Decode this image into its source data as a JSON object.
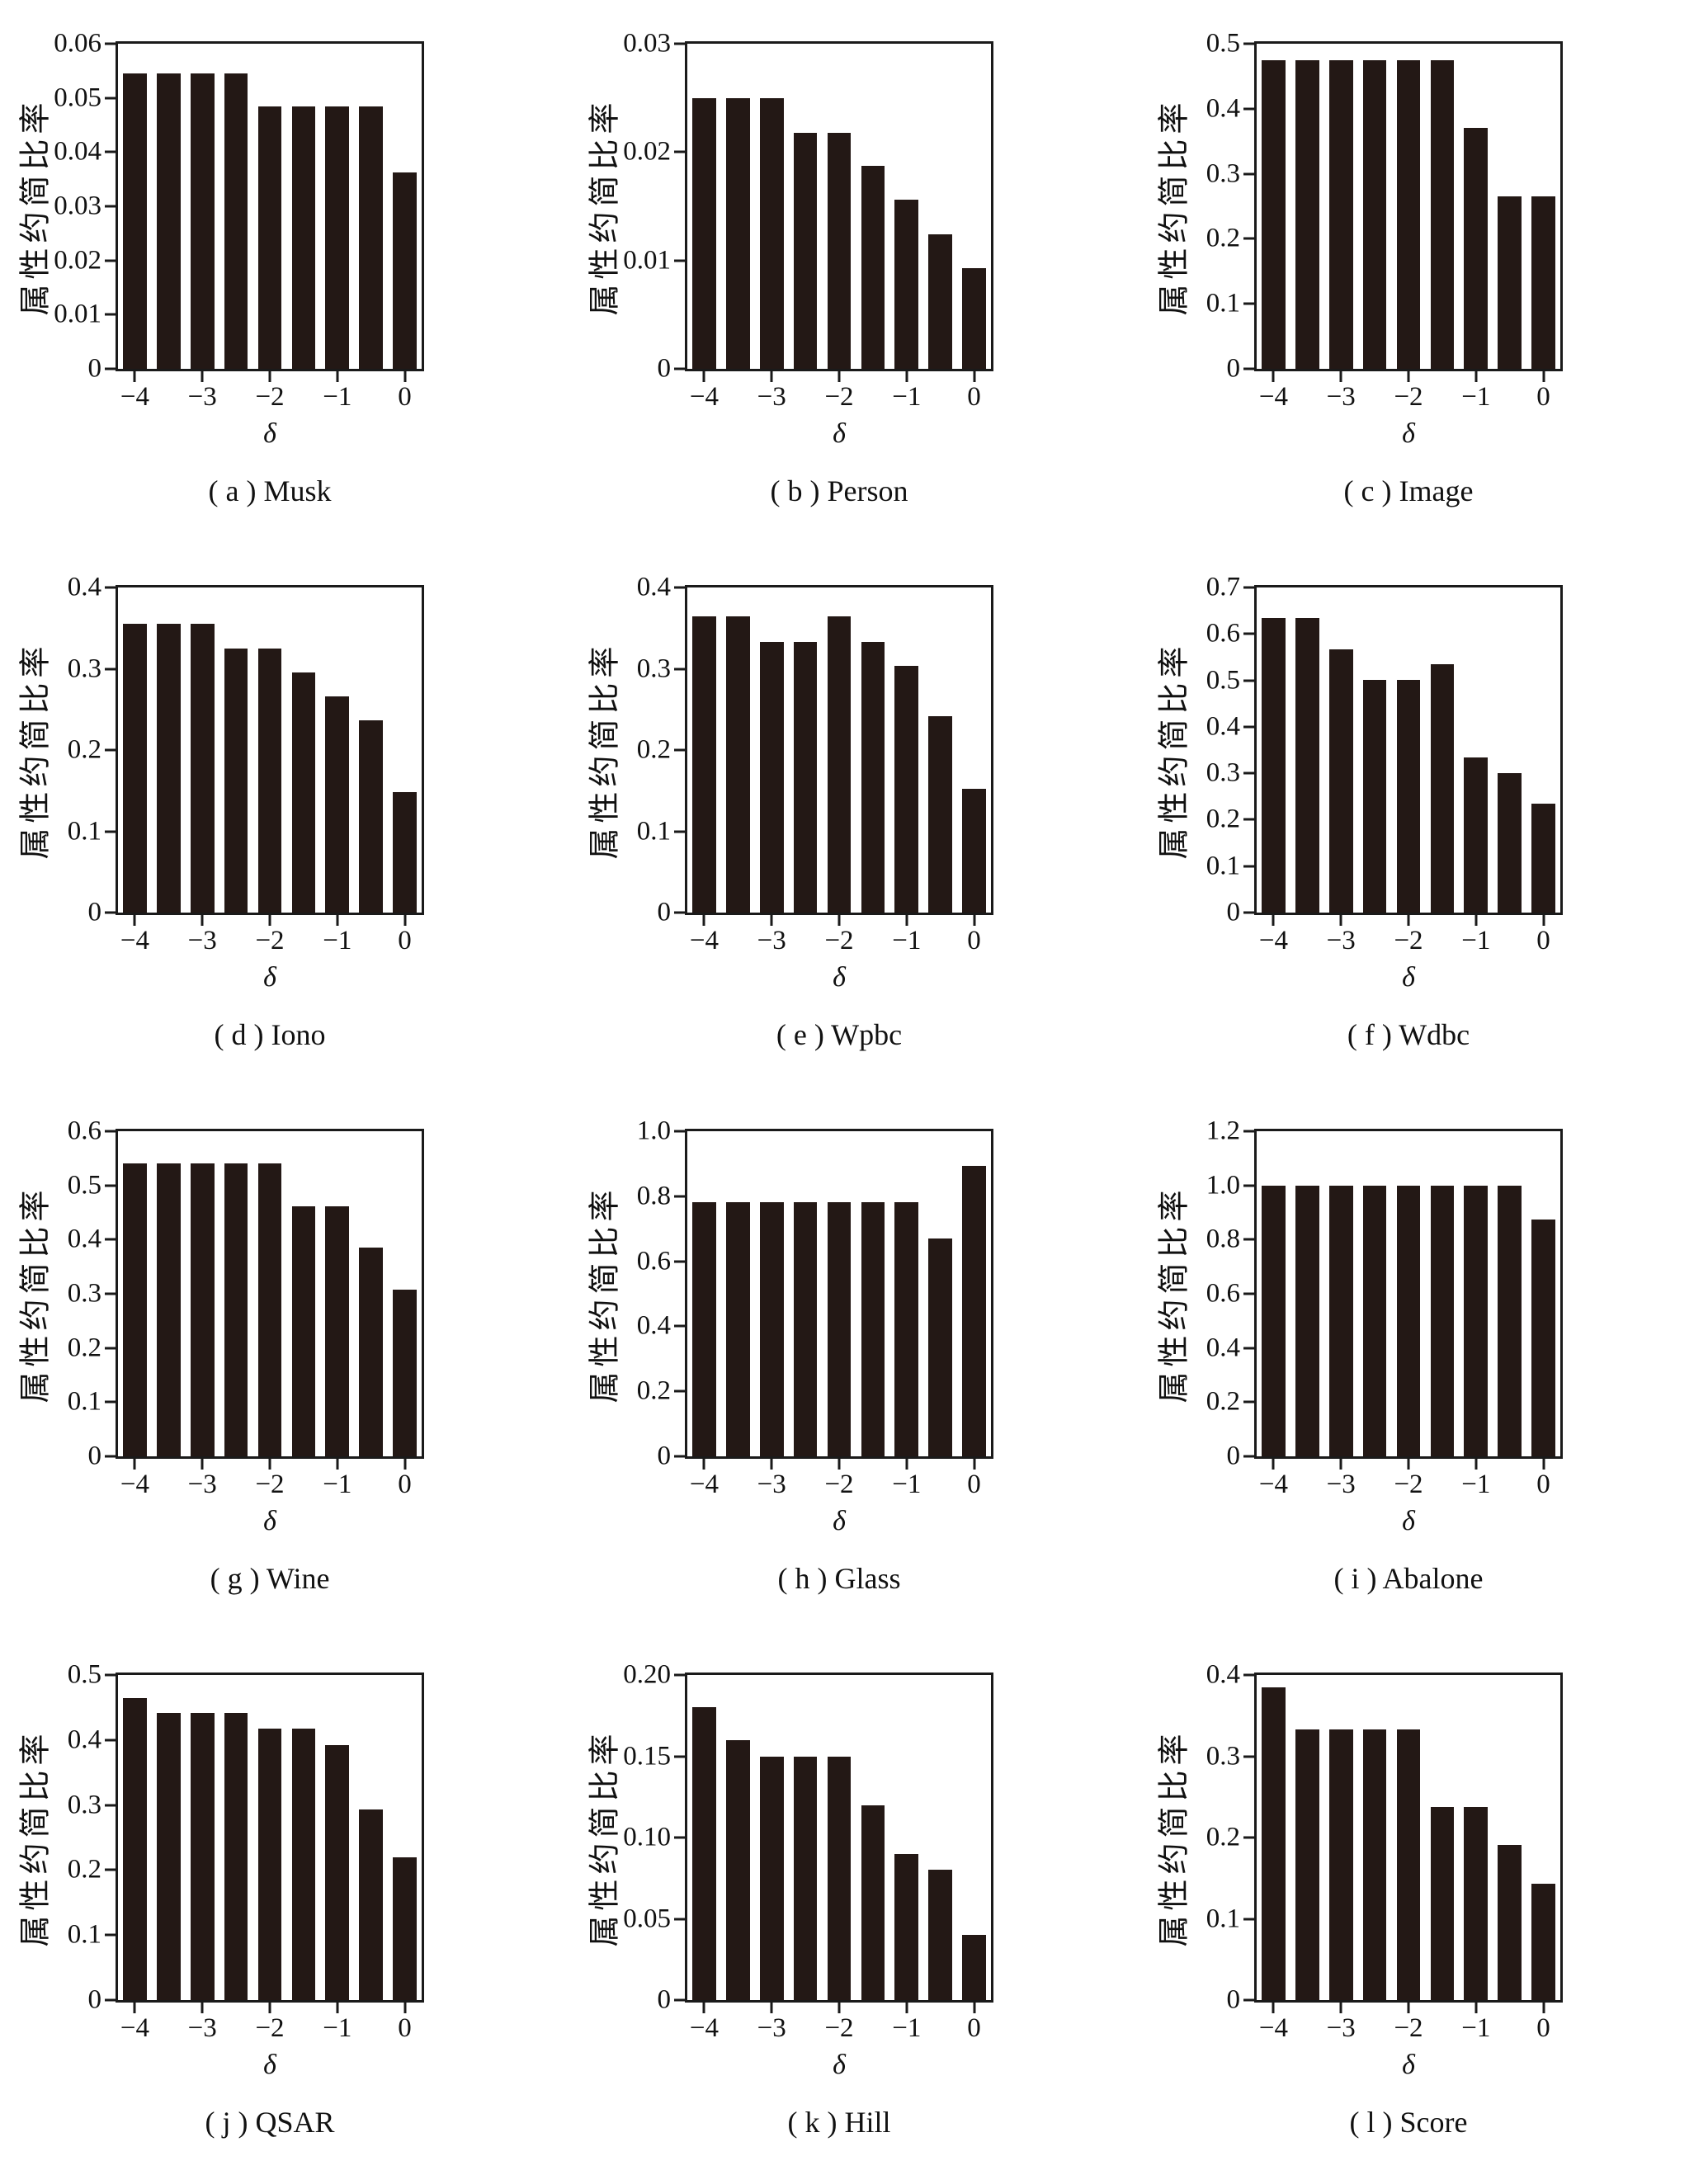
{
  "axes": {
    "y_title": "属性约简比率",
    "x_title": "δ",
    "xtick_labels": [
      "−4",
      "−3",
      "−2",
      "−1",
      "0"
    ],
    "xtick_positions": [
      0,
      2,
      4,
      6,
      8
    ]
  },
  "colors": {
    "bar": "#231815",
    "axis": "#1a1a1a",
    "background": "#ffffff"
  },
  "chart_data": [
    {
      "type": "bar",
      "panel": "a",
      "dataset": "Musk",
      "caption": "( a ) Musk",
      "title": "( a ) Musk",
      "xlabel": "δ",
      "ylabel": "属性约简比率",
      "categories": [
        -4,
        -3.5,
        -3,
        -2.5,
        -2,
        -1.5,
        -1,
        -0.5,
        0
      ],
      "values": [
        0.0545,
        0.0545,
        0.0545,
        0.0545,
        0.0485,
        0.0485,
        0.0485,
        0.0485,
        0.0362
      ],
      "ylim": [
        0,
        0.06
      ],
      "ytick_values": [
        0.06,
        0.05,
        0.04,
        0.03,
        0.02,
        0.01,
        0
      ],
      "ytick_labels": [
        "0.06",
        "0.05",
        "0.04",
        "0.03",
        "0.02",
        "0.01",
        "0"
      ],
      "grid": false,
      "legend": false
    },
    {
      "type": "bar",
      "panel": "b",
      "dataset": "Person",
      "caption": "( b ) Person",
      "title": "( b ) Person",
      "xlabel": "δ",
      "ylabel": "属性约简比率",
      "categories": [
        -4,
        -3.5,
        -3,
        -2.5,
        -2,
        -1.5,
        -1,
        -0.5,
        0
      ],
      "values": [
        0.025,
        0.025,
        0.025,
        0.0218,
        0.0218,
        0.0187,
        0.0156,
        0.0124,
        0.0093
      ],
      "ylim": [
        0,
        0.03
      ],
      "ytick_values": [
        0.03,
        0.02,
        0.01,
        0
      ],
      "ytick_labels": [
        "0.03",
        "0.02",
        "0.01",
        "0"
      ],
      "grid": false,
      "legend": false
    },
    {
      "type": "bar",
      "panel": "c",
      "dataset": "Image",
      "caption": "( c ) Image",
      "title": "( c ) Image",
      "xlabel": "δ",
      "ylabel": "属性约简比率",
      "categories": [
        -4,
        -3.5,
        -3,
        -2.5,
        -2,
        -1.5,
        -1,
        -0.5,
        0
      ],
      "values": [
        0.475,
        0.475,
        0.475,
        0.475,
        0.475,
        0.475,
        0.37,
        0.265,
        0.265
      ],
      "ylim": [
        0,
        0.5
      ],
      "ytick_values": [
        0.5,
        0.4,
        0.3,
        0.2,
        0.1,
        0
      ],
      "ytick_labels": [
        "0.5",
        "0.4",
        "0.3",
        "0.2",
        "0.1",
        "0"
      ],
      "grid": false,
      "legend": false
    },
    {
      "type": "bar",
      "panel": "d",
      "dataset": "Iono",
      "caption": "( d ) Iono",
      "title": "( d ) Iono",
      "xlabel": "δ",
      "ylabel": "属性约简比率",
      "categories": [
        -4,
        -3.5,
        -3,
        -2.5,
        -2,
        -1.5,
        -1,
        -0.5,
        0
      ],
      "values": [
        0.355,
        0.355,
        0.355,
        0.325,
        0.325,
        0.295,
        0.266,
        0.237,
        0.148
      ],
      "ylim": [
        0,
        0.4
      ],
      "ytick_values": [
        0.4,
        0.3,
        0.2,
        0.1,
        0
      ],
      "ytick_labels": [
        "0.4",
        "0.3",
        "0.2",
        "0.1",
        "0"
      ],
      "grid": false,
      "legend": false
    },
    {
      "type": "bar",
      "panel": "e",
      "dataset": "Wpbc",
      "caption": "( e ) Wpbc",
      "title": "( e ) Wpbc",
      "xlabel": "δ",
      "ylabel": "属性约简比率",
      "categories": [
        -4,
        -3.5,
        -3,
        -2.5,
        -2,
        -1.5,
        -1,
        -0.5,
        0
      ],
      "values": [
        0.364,
        0.364,
        0.333,
        0.333,
        0.364,
        0.333,
        0.304,
        0.242,
        0.152
      ],
      "ylim": [
        0,
        0.4
      ],
      "ytick_values": [
        0.4,
        0.3,
        0.2,
        0.1,
        0
      ],
      "ytick_labels": [
        "0.4",
        "0.3",
        "0.2",
        "0.1",
        "0"
      ],
      "grid": false,
      "legend": false
    },
    {
      "type": "bar",
      "panel": "f",
      "dataset": "Wdbc",
      "caption": "( f ) Wdbc",
      "title": "( f ) Wdbc",
      "xlabel": "δ",
      "ylabel": "属性约简比率",
      "categories": [
        -4,
        -3.5,
        -3,
        -2.5,
        -2,
        -1.5,
        -1,
        -0.5,
        0
      ],
      "values": [
        0.635,
        0.635,
        0.567,
        0.501,
        0.501,
        0.535,
        0.334,
        0.301,
        0.234
      ],
      "ylim": [
        0,
        0.7
      ],
      "ytick_values": [
        0.7,
        0.6,
        0.5,
        0.4,
        0.3,
        0.2,
        0.1,
        0
      ],
      "ytick_labels": [
        "0.7",
        "0.6",
        "0.5",
        "0.4",
        "0.3",
        "0.2",
        "0.1",
        "0"
      ],
      "grid": false,
      "legend": false
    },
    {
      "type": "bar",
      "panel": "g",
      "dataset": "Wine",
      "caption": "( g ) Wine",
      "title": "( g ) Wine",
      "xlabel": "δ",
      "ylabel": "属性约简比率",
      "categories": [
        -4,
        -3.5,
        -3,
        -2.5,
        -2,
        -1.5,
        -1,
        -0.5,
        0
      ],
      "values": [
        0.54,
        0.54,
        0.54,
        0.54,
        0.54,
        0.462,
        0.462,
        0.385,
        0.308
      ],
      "ylim": [
        0,
        0.6
      ],
      "ytick_values": [
        0.6,
        0.5,
        0.4,
        0.3,
        0.2,
        0.1,
        0
      ],
      "ytick_labels": [
        "0.6",
        "0.5",
        "0.4",
        "0.3",
        "0.2",
        "0.1",
        "0"
      ],
      "grid": false,
      "legend": false
    },
    {
      "type": "bar",
      "panel": "h",
      "dataset": "Glass",
      "caption": "( h ) Glass",
      "title": "( h ) Glass",
      "xlabel": "δ",
      "ylabel": "属性约简比率",
      "categories": [
        -4,
        -3.5,
        -3,
        -2.5,
        -2,
        -1.5,
        -1,
        -0.5,
        0
      ],
      "values": [
        0.783,
        0.783,
        0.783,
        0.783,
        0.783,
        0.783,
        0.783,
        0.67,
        0.893
      ],
      "ylim": [
        0,
        1.0
      ],
      "ytick_values": [
        1.0,
        0.8,
        0.6,
        0.4,
        0.2,
        0
      ],
      "ytick_labels": [
        "1.0",
        "0.8",
        "0.6",
        "0.4",
        "0.2",
        "0"
      ],
      "grid": false,
      "legend": false
    },
    {
      "type": "bar",
      "panel": "i",
      "dataset": "Abalone",
      "caption": "( i ) Abalone",
      "title": "( i ) Abalone",
      "xlabel": "δ",
      "ylabel": "属性约简比率",
      "categories": [
        -4,
        -3.5,
        -3,
        -2.5,
        -2,
        -1.5,
        -1,
        -0.5,
        0
      ],
      "values": [
        1.0,
        1.0,
        1.0,
        1.0,
        1.0,
        1.0,
        1.0,
        1.0,
        0.875
      ],
      "ylim": [
        0,
        1.2
      ],
      "ytick_values": [
        1.2,
        1.0,
        0.8,
        0.6,
        0.4,
        0.2,
        0
      ],
      "ytick_labels": [
        "1.2",
        "1.0",
        "0.8",
        "0.6",
        "0.4",
        "0.2",
        "0"
      ],
      "grid": false,
      "legend": false
    },
    {
      "type": "bar",
      "panel": "j",
      "dataset": "QSAR",
      "caption": "( j ) QSAR",
      "title": "( j ) QSAR",
      "xlabel": "δ",
      "ylabel": "属性约简比率",
      "categories": [
        -4,
        -3.5,
        -3,
        -2.5,
        -2,
        -1.5,
        -1,
        -0.5,
        0
      ],
      "values": [
        0.465,
        0.442,
        0.442,
        0.442,
        0.417,
        0.417,
        0.392,
        0.293,
        0.22
      ],
      "ylim": [
        0,
        0.5
      ],
      "ytick_values": [
        0.5,
        0.4,
        0.3,
        0.2,
        0.1,
        0
      ],
      "ytick_labels": [
        "0.5",
        "0.4",
        "0.3",
        "0.2",
        "0.1",
        "0"
      ],
      "grid": false,
      "legend": false
    },
    {
      "type": "bar",
      "panel": "k",
      "dataset": "Hill",
      "caption": "( k ) Hill",
      "title": "( k ) Hill",
      "xlabel": "δ",
      "ylabel": "属性约简比率",
      "categories": [
        -4,
        -3.5,
        -3,
        -2.5,
        -2,
        -1.5,
        -1,
        -0.5,
        0
      ],
      "values": [
        0.18,
        0.16,
        0.15,
        0.15,
        0.15,
        0.12,
        0.09,
        0.08,
        0.04
      ],
      "ylim": [
        0,
        0.2
      ],
      "ytick_values": [
        0.2,
        0.15,
        0.1,
        0.05,
        0
      ],
      "ytick_labels": [
        "0.20",
        "0.15",
        "0.10",
        "0.05",
        "0"
      ],
      "grid": false,
      "legend": false
    },
    {
      "type": "bar",
      "panel": "l",
      "dataset": "Score",
      "caption": "( l ) Score",
      "title": "( l ) Score",
      "xlabel": "δ",
      "ylabel": "属性约简比率",
      "categories": [
        -4,
        -3.5,
        -3,
        -2.5,
        -2,
        -1.5,
        -1,
        -0.5,
        0
      ],
      "values": [
        0.385,
        0.333,
        0.333,
        0.333,
        0.333,
        0.238,
        0.238,
        0.191,
        0.143
      ],
      "ylim": [
        0,
        0.4
      ],
      "ytick_values": [
        0.4,
        0.3,
        0.2,
        0.1,
        0
      ],
      "ytick_labels": [
        "0.4",
        "0.3",
        "0.2",
        "0.1",
        "0"
      ],
      "grid": false,
      "legend": false
    }
  ]
}
